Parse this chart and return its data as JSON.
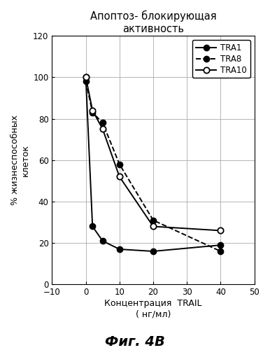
{
  "title_line1": "Апоптоз- блокирующая",
  "title_line2": "активность",
  "xlabel_line1": "Концентрация  TRAIL",
  "xlabel_line2": "( нг/мл)",
  "ylabel": "% жизнеспособных\nклеток",
  "caption": "Фиг. 4В",
  "xlim": [
    -10,
    50
  ],
  "ylim": [
    0,
    120
  ],
  "xticks": [
    -10,
    0,
    10,
    20,
    30,
    40,
    50
  ],
  "yticks": [
    0,
    20,
    40,
    60,
    80,
    100,
    120
  ],
  "TRA1_x": [
    0,
    2,
    5,
    10,
    20,
    40
  ],
  "TRA1_y": [
    100,
    28,
    21,
    17,
    16,
    19
  ],
  "TRA8_x": [
    0,
    2,
    5,
    10,
    20,
    40
  ],
  "TRA8_y": [
    98,
    83,
    78,
    58,
    31,
    16
  ],
  "TRA10_x": [
    0,
    2,
    5,
    10,
    20,
    40
  ],
  "TRA10_y": [
    100,
    84,
    75,
    52,
    28,
    26
  ],
  "grid_color": "#aaaaaa",
  "bg_color": "#ffffff",
  "marker_size": 6,
  "linewidth": 1.4,
  "title_fontsize": 10.5,
  "axis_label_fontsize": 9,
  "tick_fontsize": 8.5,
  "legend_fontsize": 8.5,
  "caption_fontsize": 14
}
